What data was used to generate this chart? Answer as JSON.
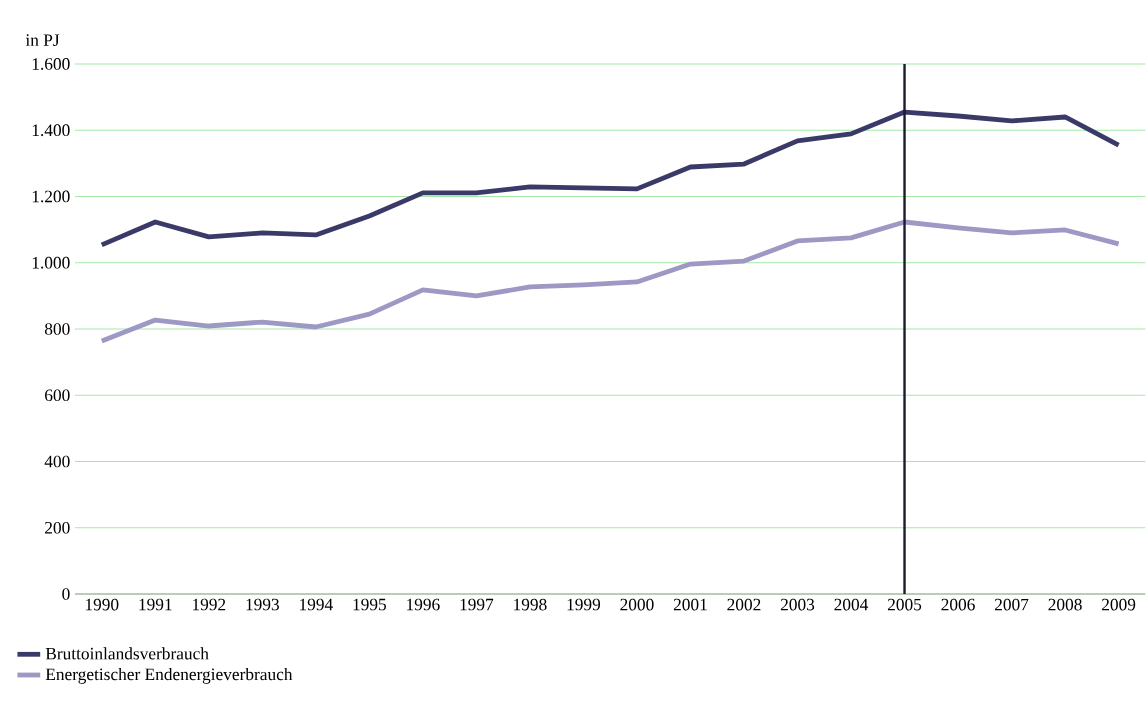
{
  "chart_data": {
    "type": "line",
    "ylabel": "in PJ",
    "categories": [
      "1990",
      "1991",
      "1992",
      "1993",
      "1994",
      "1995",
      "1996",
      "1997",
      "1998",
      "1999",
      "2000",
      "2001",
      "2002",
      "2003",
      "2004",
      "2005",
      "2006",
      "2007",
      "2008",
      "2009"
    ],
    "series": [
      {
        "name": "Bruttoinlandsverbrauch",
        "color": "#3a3a68",
        "values": [
          1054,
          1123,
          1078,
          1090,
          1084,
          1141,
          1211,
          1211,
          1229,
          1226,
          1223,
          1289,
          1298,
          1368,
          1389,
          1455,
          1443,
          1428,
          1440,
          1355
        ]
      },
      {
        "name": "Energetischer Endenergieverbrauch",
        "color": "#9d99c4",
        "values": [
          764,
          827,
          809,
          821,
          806,
          845,
          918,
          900,
          927,
          933,
          942,
          996,
          1005,
          1066,
          1075,
          1123,
          1105,
          1090,
          1099,
          1057
        ]
      }
    ],
    "ylim": [
      0,
      1600
    ],
    "yticks": [
      0,
      {
        "value": 200,
        "label": "200"
      },
      {
        "value": 400,
        "label": "400"
      },
      {
        "value": 600,
        "label": "600"
      },
      {
        "value": 800,
        "label": "800"
      },
      {
        "value": 1000,
        "label": "1.000"
      },
      {
        "value": 1200,
        "label": "1.200"
      },
      {
        "value": 1400,
        "label": "1.400"
      },
      {
        "value": 1600,
        "label": "1.600"
      }
    ],
    "ref_lines": [
      {
        "axis": "x",
        "value": "2005",
        "color": "#1a1a30"
      }
    ],
    "grid": "y",
    "legend": "bottom left",
    "marker": "none",
    "line_style": "solid"
  }
}
